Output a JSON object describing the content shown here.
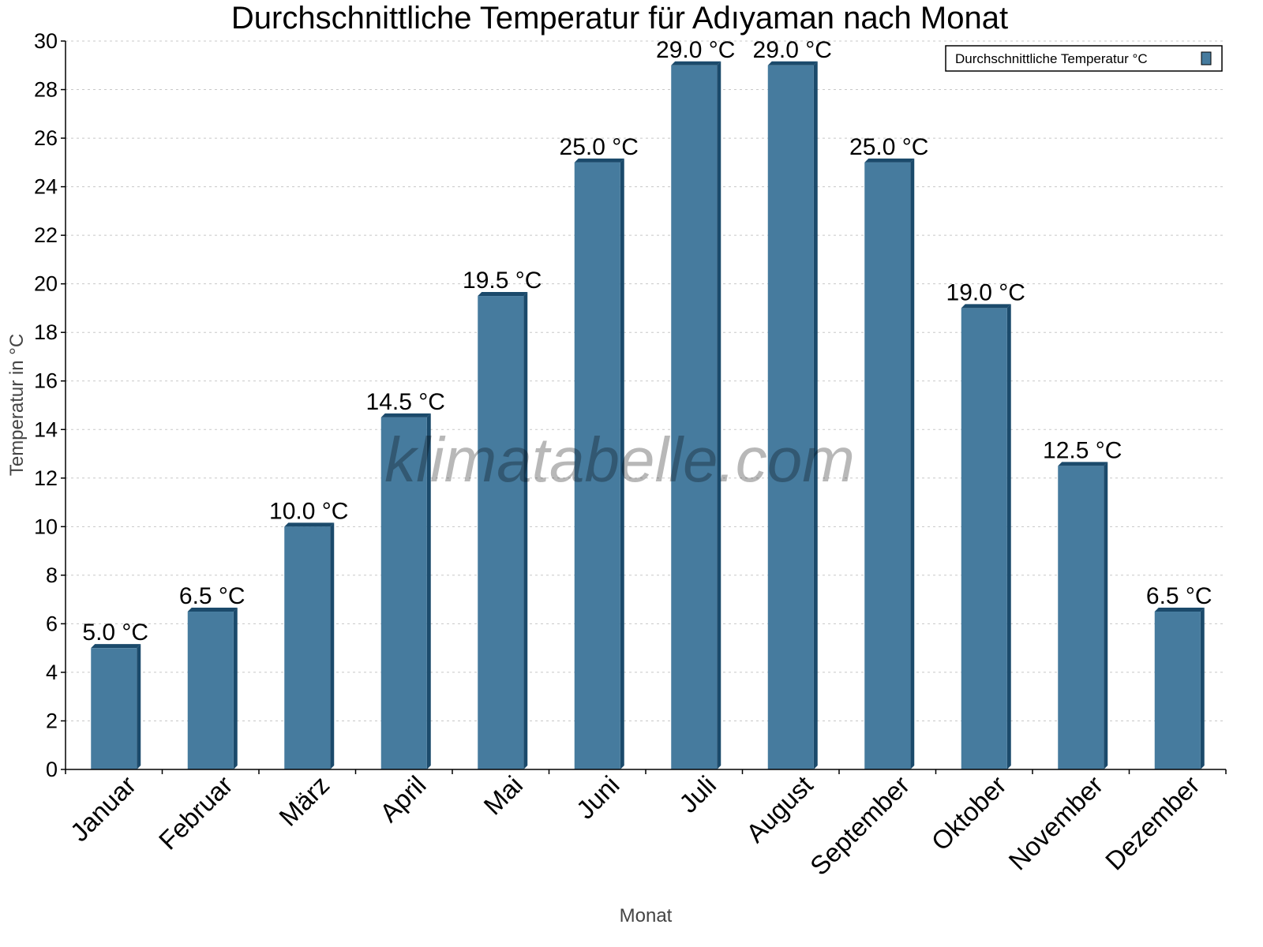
{
  "chart_data": {
    "type": "bar",
    "title": "Durchschnittliche Temperatur für Adıyaman nach Monat",
    "xlabel": "Monat",
    "ylabel": "Temperatur in °C",
    "categories": [
      "Januar",
      "Februar",
      "März",
      "April",
      "Mai",
      "Juni",
      "Juli",
      "August",
      "September",
      "Oktober",
      "November",
      "Dezember"
    ],
    "series": [
      {
        "name": "Durchschnittliche Temperatur °C",
        "values": [
          5.0,
          6.5,
          10.0,
          14.5,
          19.5,
          25.0,
          29.0,
          29.0,
          25.0,
          19.0,
          12.5,
          6.5
        ]
      }
    ],
    "data_labels": [
      "5.0 °C",
      "6.5 °C",
      "10.0 °C",
      "14.5 °C",
      "19.5 °C",
      "25.0 °C",
      "29.0 °C",
      "29.0 °C",
      "25.0 °C",
      "19.0 °C",
      "12.5 °C",
      "6.5 °C"
    ],
    "ylim": [
      0,
      30
    ],
    "yticks": [
      0,
      2,
      4,
      6,
      8,
      10,
      12,
      14,
      16,
      18,
      20,
      22,
      24,
      26,
      28,
      30
    ],
    "grid": true,
    "legend_position": "top-right",
    "colors": {
      "bar_front": "#467b9e",
      "bar_side": "#1b4a6b",
      "grid": "#c8c8c8"
    }
  },
  "watermark": "klimatabelle.com"
}
